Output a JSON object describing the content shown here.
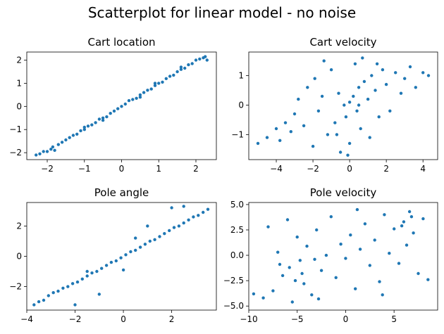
{
  "figure": {
    "title": "Scatterplot for linear model - no noise"
  },
  "chart_data": [
    {
      "type": "scatter",
      "title": "Cart location",
      "xlim": [
        -2.55,
        2.55
      ],
      "ylim": [
        -2.3,
        2.35
      ],
      "xticks": [
        -2,
        -1,
        0,
        1,
        2
      ],
      "yticks": [
        -2,
        -1,
        0,
        1,
        2
      ],
      "xticklabels": [
        "−2",
        "−1",
        "0",
        "1",
        "2"
      ],
      "yticklabels": [
        "−2",
        "−1",
        "0",
        "1",
        "2"
      ],
      "points": [
        [
          -2.3,
          -2.1
        ],
        [
          -2.2,
          -2.05
        ],
        [
          -2.1,
          -1.95
        ],
        [
          -2.0,
          -1.95
        ],
        [
          -1.9,
          -1.85
        ],
        [
          -1.85,
          -1.75
        ],
        [
          -1.7,
          -1.65
        ],
        [
          -1.6,
          -1.55
        ],
        [
          -1.5,
          -1.45
        ],
        [
          -1.4,
          -1.35
        ],
        [
          -1.3,
          -1.25
        ],
        [
          -1.2,
          -1.2
        ],
        [
          -1.1,
          -1.05
        ],
        [
          -1.0,
          -1.0
        ],
        [
          -0.9,
          -0.85
        ],
        [
          -0.8,
          -0.8
        ],
        [
          -0.7,
          -0.7
        ],
        [
          -0.6,
          -0.55
        ],
        [
          -0.5,
          -0.5
        ],
        [
          -0.4,
          -0.45
        ],
        [
          -0.3,
          -0.3
        ],
        [
          -0.2,
          -0.2
        ],
        [
          -0.1,
          -0.1
        ],
        [
          0.0,
          0.0
        ],
        [
          0.1,
          0.1
        ],
        [
          0.2,
          0.25
        ],
        [
          0.3,
          0.3
        ],
        [
          0.4,
          0.35
        ],
        [
          0.5,
          0.5
        ],
        [
          0.6,
          0.6
        ],
        [
          0.7,
          0.7
        ],
        [
          0.8,
          0.75
        ],
        [
          0.9,
          0.9
        ],
        [
          1.0,
          1.0
        ],
        [
          1.1,
          1.05
        ],
        [
          1.2,
          1.2
        ],
        [
          1.3,
          1.3
        ],
        [
          1.4,
          1.35
        ],
        [
          1.5,
          1.5
        ],
        [
          1.6,
          1.6
        ],
        [
          1.7,
          1.65
        ],
        [
          1.8,
          1.8
        ],
        [
          1.9,
          1.85
        ],
        [
          2.0,
          2.0
        ],
        [
          2.1,
          2.05
        ],
        [
          2.2,
          2.1
        ],
        [
          2.3,
          2.0
        ],
        [
          -1.8,
          -1.9
        ],
        [
          -1.0,
          -0.9
        ],
        [
          0.5,
          0.4
        ],
        [
          1.6,
          1.7
        ],
        [
          -0.5,
          -0.6
        ],
        [
          0.9,
          1.0
        ],
        [
          2.25,
          2.15
        ]
      ]
    },
    {
      "type": "scatter",
      "title": "Cart velocity",
      "xlim": [
        -5.5,
        4.8
      ],
      "ylim": [
        -1.85,
        1.8
      ],
      "xticks": [
        -4,
        -2,
        0,
        2,
        4
      ],
      "yticks": [
        -1,
        0,
        1
      ],
      "xticklabels": [
        "−4",
        "−2",
        "0",
        "2",
        "4"
      ],
      "yticklabels": [
        "−1",
        "0",
        "1"
      ],
      "points": [
        [
          -5.0,
          -1.3
        ],
        [
          -4.5,
          -1.1
        ],
        [
          -4.0,
          -0.8
        ],
        [
          -3.8,
          -1.2
        ],
        [
          -3.5,
          -0.6
        ],
        [
          -3.2,
          -0.9
        ],
        [
          -3.0,
          -0.3
        ],
        [
          -2.8,
          0.2
        ],
        [
          -2.5,
          -0.7
        ],
        [
          -2.3,
          0.6
        ],
        [
          -2.0,
          -1.4
        ],
        [
          -1.9,
          0.9
        ],
        [
          -1.7,
          -0.2
        ],
        [
          -1.5,
          0.3
        ],
        [
          -1.4,
          1.5
        ],
        [
          -1.2,
          -1.0
        ],
        [
          -1.0,
          1.2
        ],
        [
          -0.8,
          -0.6
        ],
        [
          -0.6,
          0.4
        ],
        [
          -0.5,
          -1.6
        ],
        [
          -0.3,
          0.0
        ],
        [
          -0.2,
          -0.4
        ],
        [
          0.0,
          0.1
        ],
        [
          0.0,
          -1.3
        ],
        [
          0.2,
          0.3
        ],
        [
          0.3,
          1.4
        ],
        [
          0.4,
          -0.2
        ],
        [
          0.5,
          0.6
        ],
        [
          0.6,
          -0.8
        ],
        [
          0.7,
          1.6
        ],
        [
          0.8,
          0.8
        ],
        [
          1.0,
          0.2
        ],
        [
          1.1,
          -1.1
        ],
        [
          1.2,
          1.0
        ],
        [
          1.4,
          0.5
        ],
        [
          1.6,
          -0.4
        ],
        [
          1.8,
          1.2
        ],
        [
          2.0,
          0.7
        ],
        [
          2.2,
          -0.2
        ],
        [
          2.5,
          1.1
        ],
        [
          2.8,
          0.4
        ],
        [
          3.0,
          0.9
        ],
        [
          3.3,
          1.3
        ],
        [
          3.6,
          0.6
        ],
        [
          4.0,
          1.1
        ],
        [
          4.3,
          1.0
        ],
        [
          -0.1,
          -1.7
        ],
        [
          0.5,
          0.0
        ],
        [
          -0.7,
          -1.0
        ],
        [
          1.5,
          1.4
        ]
      ]
    },
    {
      "type": "scatter",
      "title": "Pole angle",
      "xlim": [
        -4.0,
        3.85
      ],
      "ylim": [
        -3.55,
        3.55
      ],
      "xticks": [
        -4,
        -2,
        0,
        2
      ],
      "yticks": [
        -2,
        0,
        2
      ],
      "xticklabels": [
        "−4",
        "−2",
        "0",
        "2"
      ],
      "yticklabels": [
        "−2",
        "0",
        "2"
      ],
      "points": [
        [
          -3.7,
          -3.2
        ],
        [
          -3.5,
          -3.0
        ],
        [
          -3.3,
          -2.9
        ],
        [
          -3.1,
          -2.6
        ],
        [
          -2.9,
          -2.4
        ],
        [
          -2.7,
          -2.3
        ],
        [
          -2.5,
          -2.1
        ],
        [
          -2.3,
          -2.0
        ],
        [
          -2.1,
          -1.8
        ],
        [
          -1.9,
          -1.7
        ],
        [
          -1.7,
          -1.5
        ],
        [
          -1.5,
          -1.3
        ],
        [
          -1.3,
          -1.1
        ],
        [
          -1.1,
          -1.0
        ],
        [
          -0.9,
          -0.8
        ],
        [
          -0.7,
          -0.6
        ],
        [
          -0.5,
          -0.4
        ],
        [
          -0.3,
          -0.3
        ],
        [
          -0.1,
          -0.1
        ],
        [
          0.1,
          0.1
        ],
        [
          0.3,
          0.3
        ],
        [
          0.5,
          0.4
        ],
        [
          0.7,
          0.6
        ],
        [
          0.9,
          0.8
        ],
        [
          1.1,
          1.0
        ],
        [
          1.3,
          1.1
        ],
        [
          1.5,
          1.3
        ],
        [
          1.7,
          1.5
        ],
        [
          1.9,
          1.7
        ],
        [
          2.1,
          1.9
        ],
        [
          2.3,
          2.0
        ],
        [
          2.5,
          2.2
        ],
        [
          2.7,
          2.4
        ],
        [
          2.9,
          2.6
        ],
        [
          3.1,
          2.7
        ],
        [
          3.3,
          2.9
        ],
        [
          3.5,
          3.1
        ],
        [
          -2.0,
          -3.2
        ],
        [
          -1.0,
          -2.5
        ],
        [
          0.0,
          -0.9
        ],
        [
          1.0,
          2.0
        ],
        [
          2.0,
          3.2
        ],
        [
          2.5,
          3.3
        ],
        [
          -1.5,
          -1.0
        ],
        [
          0.5,
          1.2
        ]
      ]
    },
    {
      "type": "scatter",
      "title": "Pole velocity",
      "xlim": [
        -10.0,
        9.5
      ],
      "ylim": [
        -5.4,
        5.2
      ],
      "xticks": [
        -10,
        -5,
        0,
        5
      ],
      "yticks": [
        -5.0,
        -2.5,
        0.0,
        2.5,
        5.0
      ],
      "xticklabels": [
        "−10",
        "−5",
        "0",
        "5"
      ],
      "yticklabels": [
        "−5.0",
        "−2.5",
        "0.0",
        "2.5",
        "5.0"
      ],
      "points": [
        [
          -9.5,
          -3.8
        ],
        [
          -8.5,
          -4.2
        ],
        [
          -8.0,
          2.8
        ],
        [
          -7.5,
          -3.5
        ],
        [
          -7.0,
          0.3
        ],
        [
          -6.5,
          -2.0
        ],
        [
          -6.0,
          3.5
        ],
        [
          -5.8,
          -1.2
        ],
        [
          -5.5,
          -4.6
        ],
        [
          -5.0,
          1.8
        ],
        [
          -4.7,
          -0.5
        ],
        [
          -4.3,
          -2.8
        ],
        [
          -4.0,
          0.9
        ],
        [
          -3.5,
          -3.9
        ],
        [
          -3.0,
          2.5
        ],
        [
          -2.5,
          -1.5
        ],
        [
          -2.0,
          0.0
        ],
        [
          -1.5,
          3.8
        ],
        [
          -1.0,
          -2.2
        ],
        [
          -0.5,
          1.1
        ],
        [
          0.0,
          -0.3
        ],
        [
          0.5,
          2.0
        ],
        [
          1.0,
          -3.3
        ],
        [
          1.5,
          0.6
        ],
        [
          2.0,
          3.1
        ],
        [
          2.5,
          -1.0
        ],
        [
          3.0,
          1.5
        ],
        [
          3.5,
          -2.6
        ],
        [
          4.0,
          4.0
        ],
        [
          4.5,
          0.2
        ],
        [
          5.0,
          2.6
        ],
        [
          5.5,
          -0.8
        ],
        [
          6.0,
          3.3
        ],
        [
          6.3,
          1.0
        ],
        [
          6.6,
          4.3
        ],
        [
          7.0,
          2.2
        ],
        [
          7.5,
          -1.8
        ],
        [
          8.0,
          3.6
        ],
        [
          8.5,
          -2.4
        ],
        [
          -6.8,
          -0.9
        ],
        [
          -4.5,
          -1.8
        ],
        [
          -3.2,
          -0.4
        ],
        [
          5.8,
          2.9
        ],
        [
          6.8,
          3.8
        ],
        [
          -5.2,
          -2.5
        ],
        [
          1.2,
          4.5
        ],
        [
          -2.8,
          -4.3
        ],
        [
          3.8,
          -3.9
        ]
      ]
    }
  ]
}
